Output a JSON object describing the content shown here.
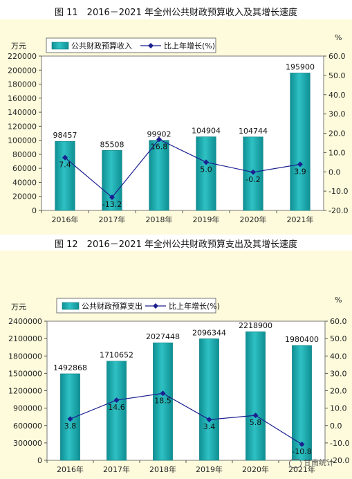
{
  "figures": [
    {
      "title": "图 11　2016－2021 年全州公共财政预算收入及其增长速度"
    },
    {
      "title": "图 12　2016－2021 年全州公共财政预算支出及其增长速度"
    }
  ],
  "watermark": "甘南统计",
  "chart_data": [
    {
      "type": "bar",
      "title": "图 11　2016－2021 年全州公共财政预算收入及其增长速度",
      "categories": [
        "2016年",
        "2017年",
        "2018年",
        "2019年",
        "2020年",
        "2021年"
      ],
      "series": [
        {
          "name": "公共财政预算收入",
          "type": "bar",
          "axis": "left",
          "values": [
            98457,
            85508,
            99902,
            104904,
            104744,
            195900
          ],
          "labels": [
            "98457",
            "85508",
            "99902",
            "104904",
            "104744",
            "195900"
          ]
        },
        {
          "name": "比上年增长(%)",
          "type": "line",
          "axis": "right",
          "values": [
            7.4,
            -13.2,
            16.8,
            5.0,
            -0.2,
            3.9
          ],
          "labels": [
            "7.4",
            "-13.2",
            "16.8",
            "5.0",
            "-0.2",
            "3.9"
          ]
        }
      ],
      "y_left": {
        "unit": "万元",
        "min": 0,
        "max": 220000,
        "step": 20000,
        "ticks": [
          "0",
          "20000",
          "40000",
          "60000",
          "80000",
          "100000",
          "120000",
          "140000",
          "160000",
          "180000",
          "200000",
          "220000"
        ]
      },
      "y_right": {
        "unit": "%",
        "min": -20,
        "max": 60,
        "step": 10,
        "ticks": [
          "-20.0",
          "-10.0",
          "0.0",
          "10.0",
          "20.0",
          "30.0",
          "40.0",
          "50.0",
          "60.0"
        ]
      },
      "legend": "top-left",
      "grid": false,
      "colors": {
        "bar": "#2fc1c4",
        "bar_dark": "#0e8f93",
        "line": "#1b1f8f"
      }
    },
    {
      "type": "bar",
      "title": "图 12　2016－2021 年全州公共财政预算支出及其增长速度",
      "categories": [
        "2016年",
        "2017年",
        "2018年",
        "2019年",
        "2020年",
        "2021年"
      ],
      "series": [
        {
          "name": "公共财政预算支出",
          "type": "bar",
          "axis": "left",
          "values": [
            1492868,
            1710652,
            2027448,
            2096344,
            2218900,
            1980400
          ],
          "labels": [
            "1492868",
            "1710652",
            "2027448",
            "2096344",
            "2218900",
            "1980400"
          ]
        },
        {
          "name": "比上年增长(%)",
          "type": "line",
          "axis": "right",
          "values": [
            3.8,
            14.6,
            18.5,
            3.4,
            5.8,
            -10.8
          ],
          "labels": [
            "3.8",
            "14.6",
            "18.5",
            "3.4",
            "5.8",
            "-10.8"
          ]
        }
      ],
      "y_left": {
        "unit": "万元",
        "min": 0,
        "max": 2400000,
        "step": 300000,
        "ticks": [
          "0",
          "300000",
          "600000",
          "900000",
          "1200000",
          "1500000",
          "1800000",
          "2100000",
          "2400000"
        ]
      },
      "y_right": {
        "unit": "%",
        "min": -20,
        "max": 60,
        "step": 10,
        "ticks": [
          "-20.0",
          "-10.0",
          "0.0",
          "10.0",
          "20.0",
          "30.0",
          "40.0",
          "50.0",
          "60.0"
        ]
      },
      "legend": "top-left",
      "grid": false,
      "colors": {
        "bar": "#2fc1c4",
        "bar_dark": "#0e8f93",
        "line": "#1b1f8f"
      }
    }
  ]
}
